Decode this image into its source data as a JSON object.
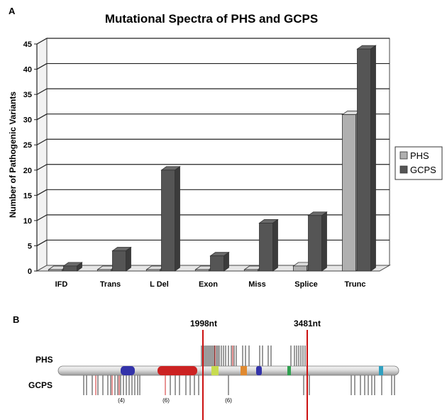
{
  "panel_a_label": "A",
  "panel_b_label": "B",
  "chart_data": {
    "type": "bar",
    "title": "Mutational Spectra of PHS and GCPS",
    "xlabel": "",
    "ylabel": "Number of Pathogenic Variants",
    "ylim": [
      0,
      45
    ],
    "yticks": [
      0,
      5,
      10,
      15,
      20,
      25,
      30,
      35,
      40,
      45
    ],
    "categories": [
      "IFD",
      "Trans",
      "L Del",
      "Exon",
      "Miss",
      "Splice",
      "Trunc"
    ],
    "series": [
      {
        "name": "PHS",
        "color": "#b0b0b0",
        "values": [
          0,
          0,
          0,
          0,
          0,
          1,
          31
        ]
      },
      {
        "name": "GCPS",
        "color": "#555555",
        "values": [
          1,
          4,
          20,
          3,
          9.5,
          11,
          44
        ]
      }
    ],
    "grid": true,
    "legend_position": "right"
  },
  "gene_diagram": {
    "row_labels": [
      "PHS",
      "GCPS"
    ],
    "markers": [
      "1998nt",
      "3481nt"
    ],
    "cluster_counts": [
      "(4)",
      "(6)",
      "(6)"
    ],
    "domain_colors": [
      "#3333aa",
      "#cc2222",
      "#c8dc50",
      "#e08a30",
      "#3333aa",
      "#30a050",
      "#30a0c0"
    ],
    "marker_color": "#cc1111",
    "phs_variant_positions": [
      284,
      286,
      288,
      290,
      292,
      294,
      296,
      298,
      300,
      302,
      305,
      307,
      309,
      312,
      315,
      318,
      322,
      326,
      330,
      333,
      342,
      346,
      351,
      366,
      370,
      378,
      382,
      410,
      415,
      418,
      421,
      424,
      427,
      430
    ],
    "phs_red_positions": [
      303,
      328
    ],
    "gcps_variant_positions": [
      118,
      122,
      130,
      138,
      145,
      152,
      156,
      162,
      166,
      170,
      174,
      178,
      182,
      186,
      190,
      194,
      197,
      240,
      247,
      253,
      262,
      268,
      274,
      280,
      322,
      428,
      433,
      436,
      495,
      500,
      508,
      514,
      519,
      524,
      528,
      538,
      552,
      556
    ],
    "gcps_red_positions": [
      135,
      158,
      168,
      233
    ]
  }
}
